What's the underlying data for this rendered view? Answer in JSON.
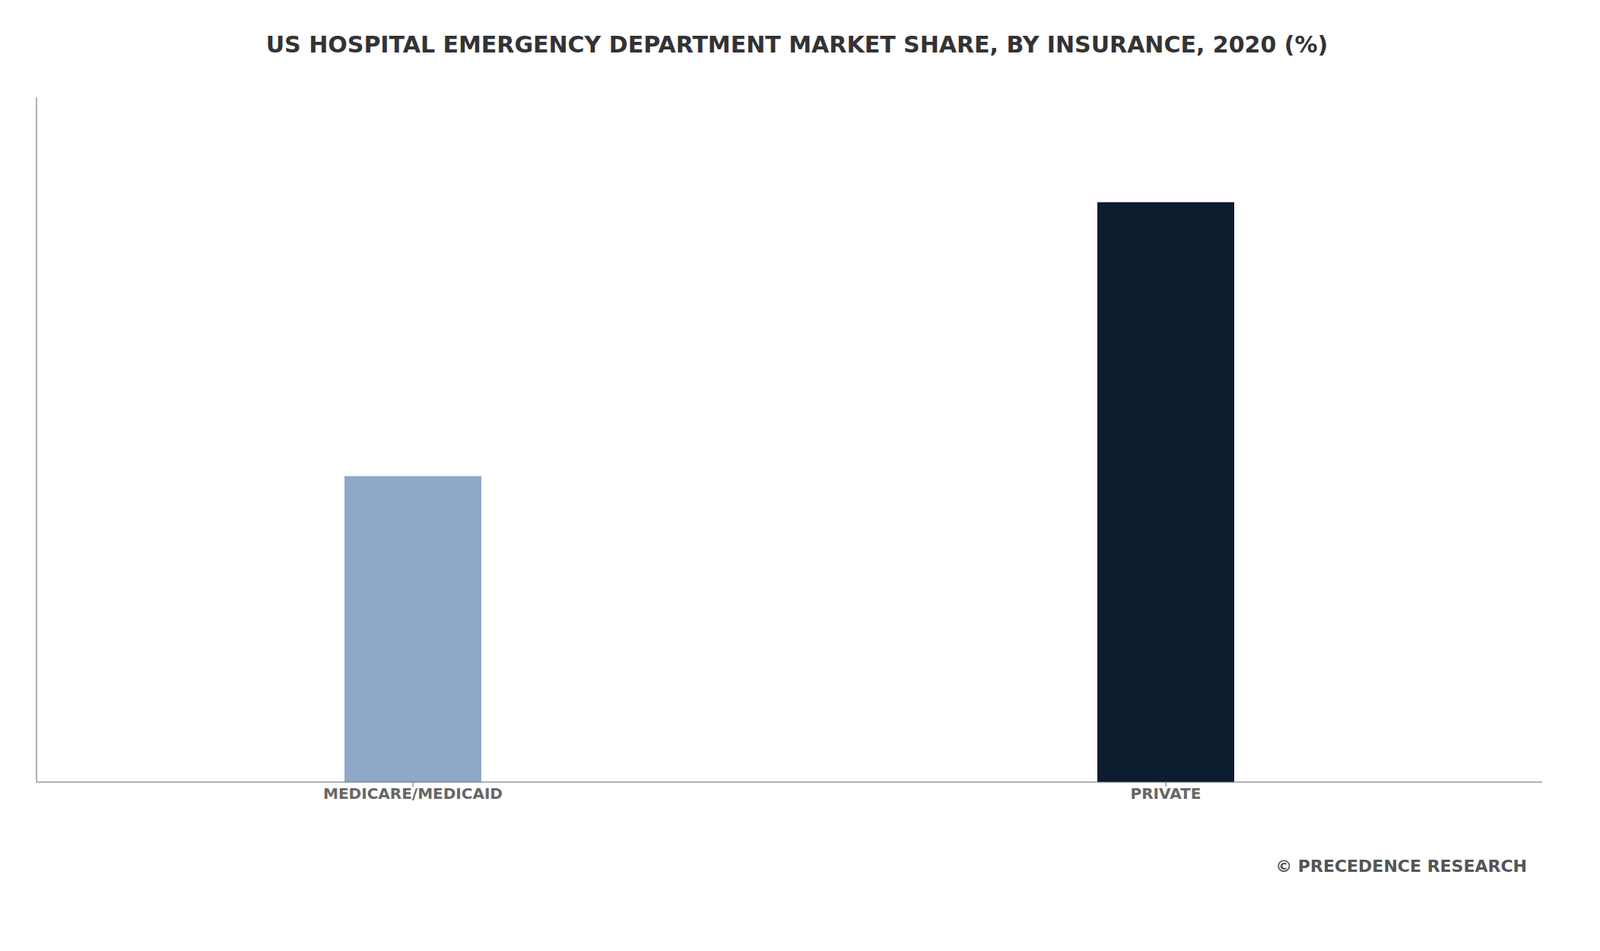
{
  "chart_data": {
    "type": "bar",
    "title": "US HOSPITAL EMERGENCY DEPARTMENT MARKET SHARE, BY INSURANCE, 2020 (%)",
    "categories": [
      "MEDICARE/MEDICAID",
      "PRIVATE"
    ],
    "values": [
      38,
      72
    ],
    "colors": [
      "#8fa8c8",
      "#0d1b2e"
    ],
    "ylim": [
      0,
      85
    ],
    "tick_labels": "x",
    "grid": false,
    "annotations": [
      "© PRECEDENCE RESEARCH"
    ]
  }
}
